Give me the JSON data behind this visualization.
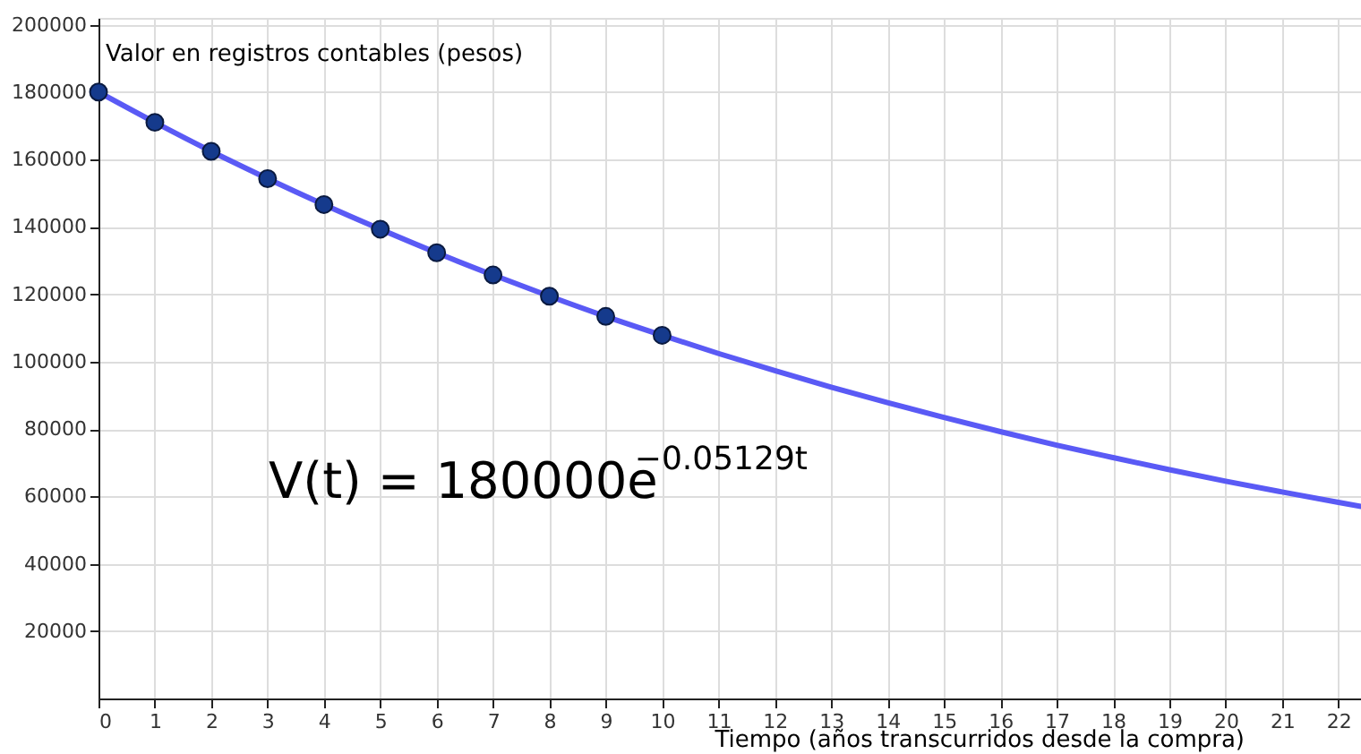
{
  "chart_data": {
    "type": "line",
    "xlabel": "Tiempo (años transcurridos desde la compra)",
    "ylabel": "Valor en registros contables (pesos)",
    "annotations": [
      "V(t) = 180000e$^{−0.05129t}$"
    ],
    "series": [
      {
        "color": "#5a5af5",
        "x": [
          0,
          1,
          2,
          3,
          4,
          5,
          6,
          7,
          8,
          9,
          10,
          11,
          12,
          13,
          14,
          15,
          16,
          17,
          18,
          19,
          20,
          21,
          22,
          22.4
        ],
        "values": [
          180000,
          171000,
          162400,
          154300,
          146600,
          139300,
          132300,
          125700,
          119400,
          113400,
          107800,
          102400,
          97300,
          92400,
          87800,
          83400,
          79200,
          75200,
          71500,
          67900,
          64500,
          61300,
          58200,
          57000
        ]
      },
      {
        "type": "scatter",
        "color": "#153a8c",
        "marker": "circle",
        "x": [
          0,
          1,
          2,
          3,
          4,
          5,
          6,
          7,
          8,
          9,
          10
        ],
        "values": [
          180000,
          171000,
          162400,
          154300,
          146600,
          139300,
          132300,
          125700,
          119400,
          113400,
          107800
        ]
      }
    ],
    "xlim": [
      0,
      22.4
    ],
    "ylim": [
      0,
      202000
    ],
    "xticks": [
      0,
      1,
      2,
      3,
      4,
      5,
      6,
      7,
      8,
      9,
      10,
      11,
      12,
      13,
      14,
      15,
      16,
      17,
      18,
      19,
      20,
      21,
      22
    ],
    "yticks": [
      20000,
      40000,
      60000,
      80000,
      100000,
      120000,
      140000,
      160000,
      180000,
      200000
    ],
    "grid": true
  }
}
